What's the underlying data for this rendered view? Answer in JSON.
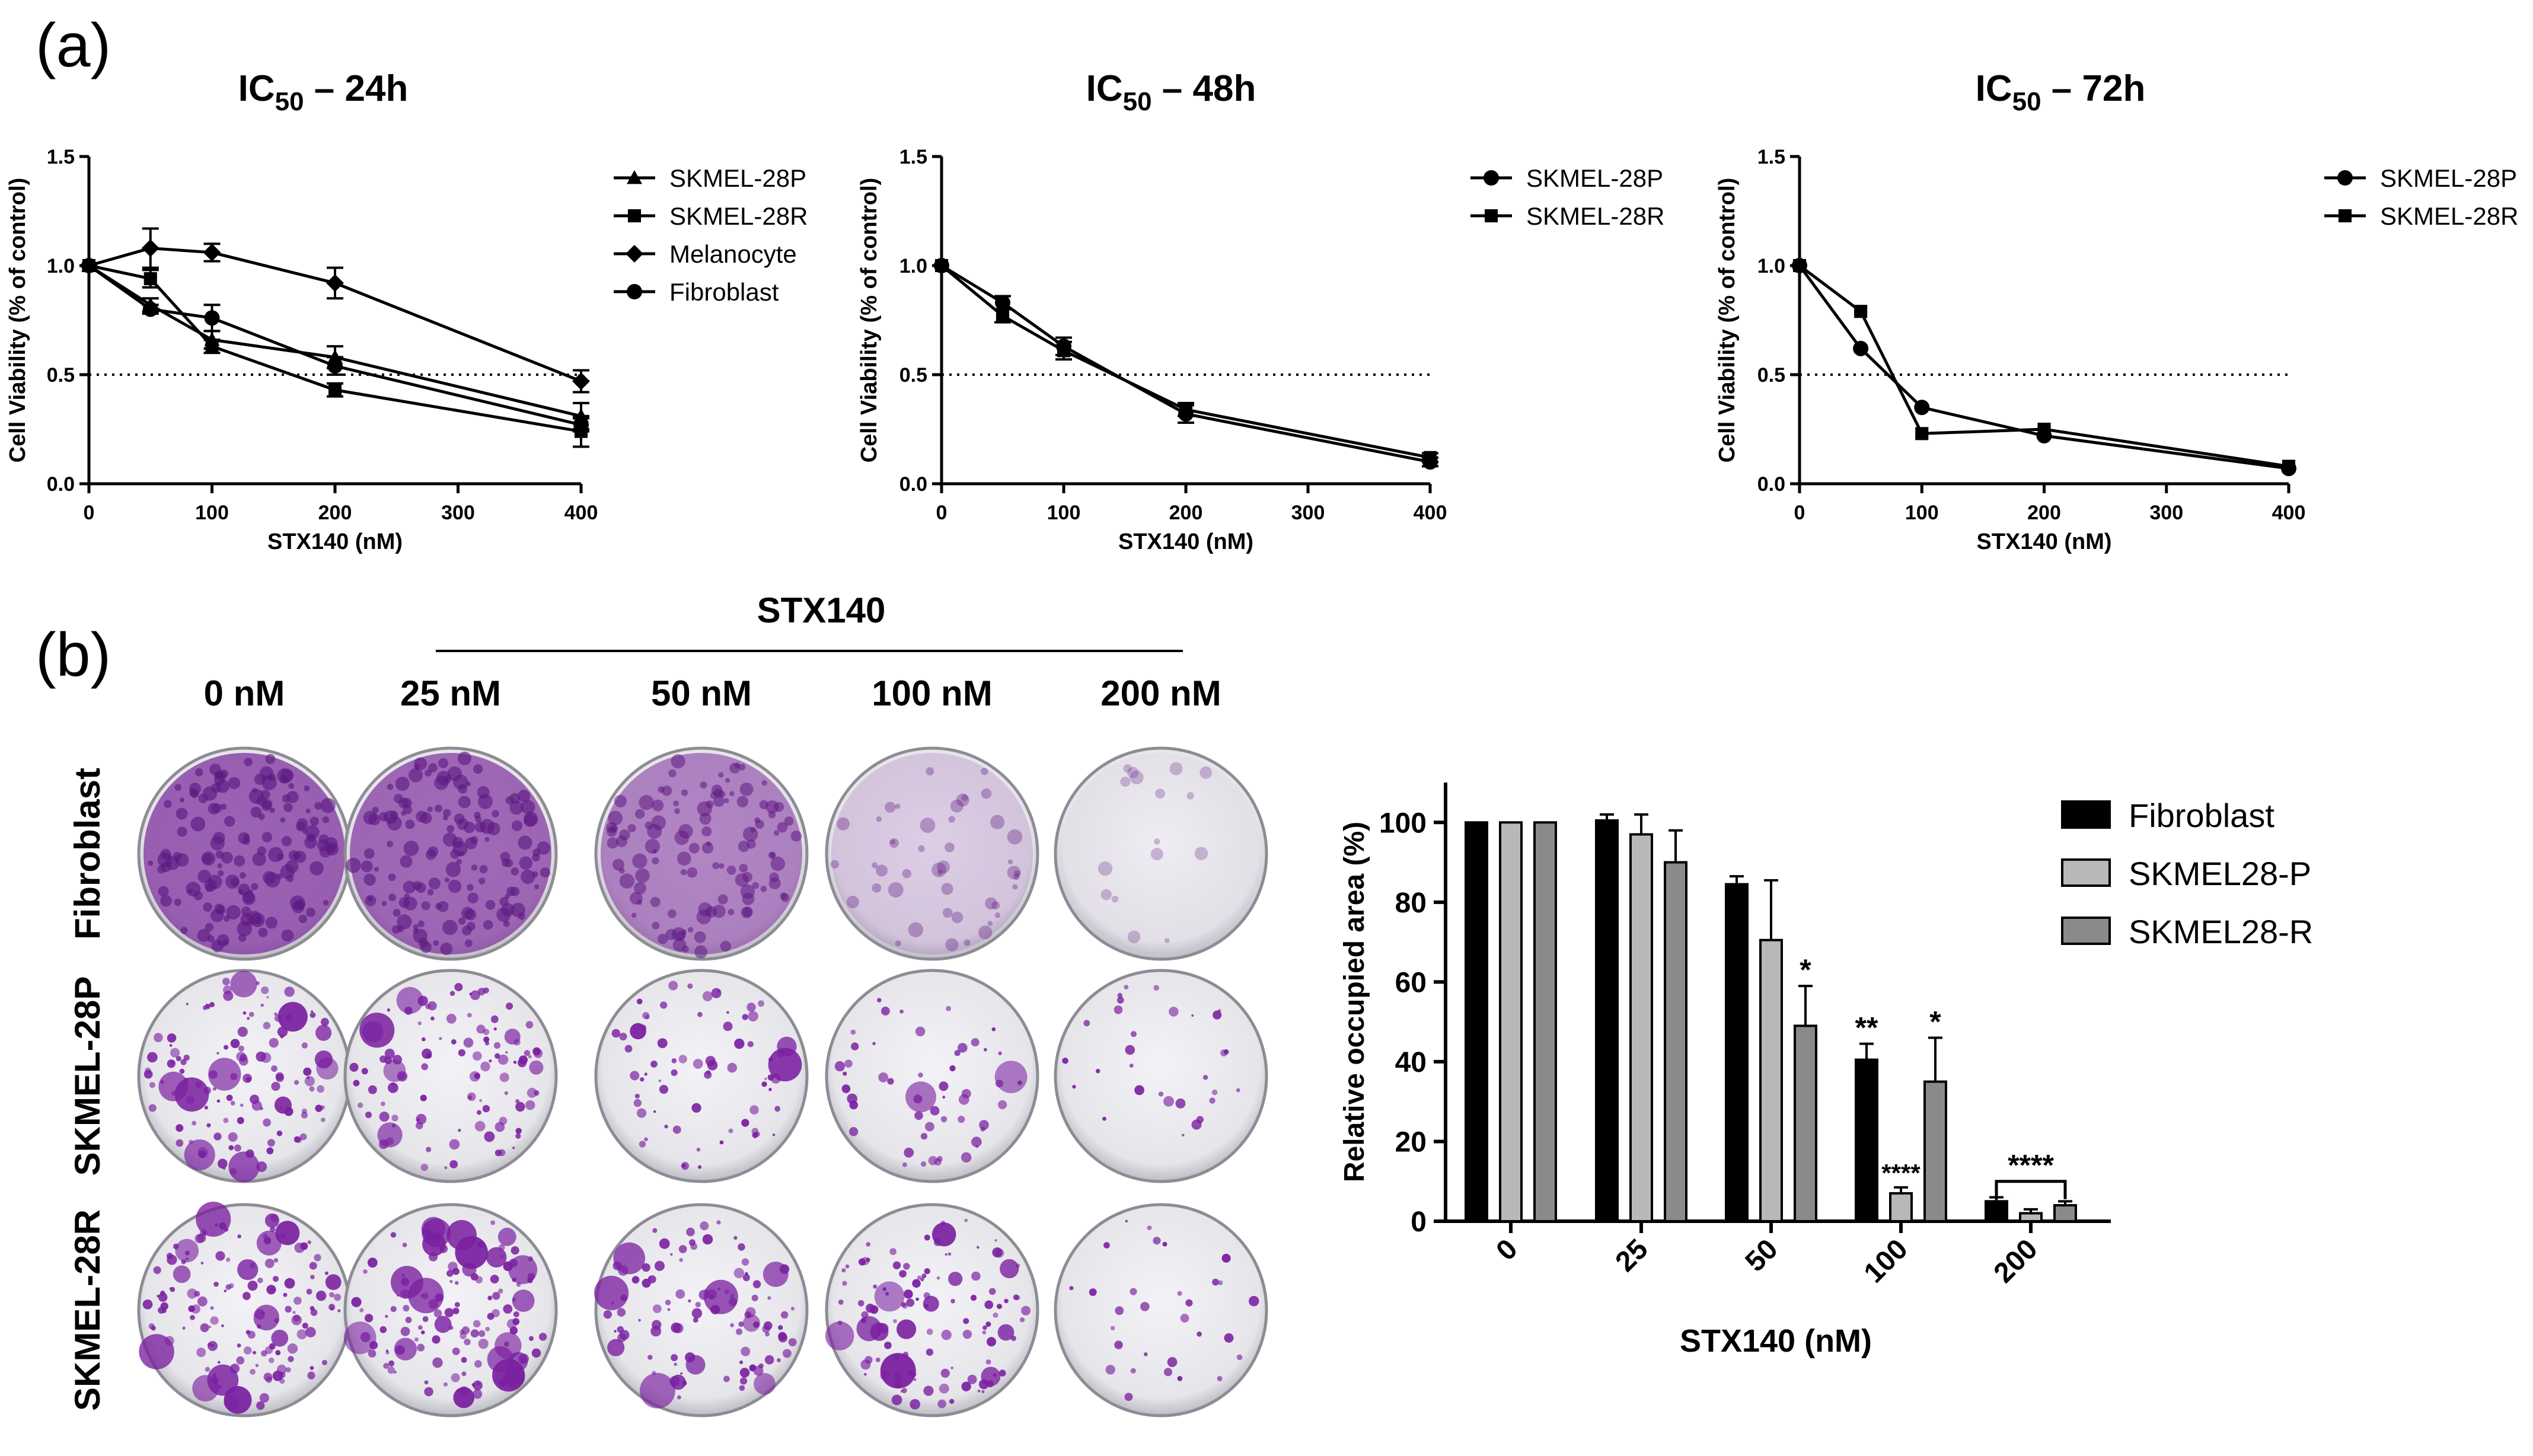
{
  "panel_labels": [
    "(a)",
    "(b)"
  ],
  "colors": {
    "ink": "#000000",
    "fibroblast_bar": "#000000",
    "p_bar": "#b8b8b8",
    "r_bar": "#8a8a8a",
    "plate_bg": "#eeeef2",
    "stain": "#7a2a9a"
  },
  "chart_data": [
    {
      "type": "line",
      "title": "IC50 – 24h",
      "title_main": "IC",
      "title_sub": "50",
      "title_rest": " – 24h",
      "xlabel": "STX140 (nM)",
      "ylabel": "Cell Viability (% of control)",
      "xlim": [
        0,
        400
      ],
      "ylim": [
        0,
        1.5
      ],
      "xticks": [
        0,
        100,
        200,
        300,
        400
      ],
      "xtick_labels": [
        "0",
        "100",
        "200",
        "300",
        "400"
      ],
      "yticks": [
        0.0,
        0.5,
        1.0,
        1.5
      ],
      "ytick_labels": [
        "0.0",
        "0.5",
        "1.0",
        "1.5"
      ],
      "threshold": 0.5,
      "x": [
        0,
        50,
        100,
        200,
        400
      ],
      "series": [
        {
          "name": "SKMEL-28P",
          "marker": "triangle",
          "values": [
            1.0,
            0.82,
            0.66,
            0.58,
            0.31
          ],
          "errors": [
            0.01,
            0.03,
            0.04,
            0.05,
            0.06
          ]
        },
        {
          "name": "SKMEL-28R",
          "marker": "square",
          "values": [
            1.0,
            0.94,
            0.63,
            0.43,
            0.24
          ],
          "errors": [
            0.01,
            0.04,
            0.03,
            0.03,
            0.07
          ]
        },
        {
          "name": "Melanocyte",
          "marker": "diamond",
          "values": [
            1.0,
            1.08,
            1.06,
            0.92,
            0.47
          ],
          "errors": [
            0.01,
            0.09,
            0.04,
            0.07,
            0.05
          ]
        },
        {
          "name": "Fibroblast",
          "marker": "circle",
          "values": [
            1.0,
            0.8,
            0.76,
            0.54,
            0.27
          ],
          "errors": [
            0.01,
            0.02,
            0.06,
            0.04,
            0.03
          ]
        }
      ]
    },
    {
      "type": "line",
      "title": "IC50 – 48h",
      "title_main": "IC",
      "title_sub": "50",
      "title_rest": " – 48h",
      "xlabel": "STX140 (nM)",
      "ylabel": "Cell Viability (% of control)",
      "xlim": [
        0,
        400
      ],
      "ylim": [
        0,
        1.5
      ],
      "xticks": [
        0,
        100,
        200,
        300,
        400
      ],
      "xtick_labels": [
        "0",
        "100",
        "200",
        "300",
        "400"
      ],
      "yticks": [
        0.0,
        0.5,
        1.0,
        1.5
      ],
      "ytick_labels": [
        "0.0",
        "0.5",
        "1.0",
        "1.5"
      ],
      "threshold": 0.5,
      "x": [
        0,
        50,
        100,
        200,
        400
      ],
      "series": [
        {
          "name": "SKMEL-28P",
          "marker": "circle",
          "values": [
            1.0,
            0.83,
            0.63,
            0.32,
            0.1
          ],
          "errors": [
            0.01,
            0.03,
            0.04,
            0.04,
            0.02
          ]
        },
        {
          "name": "SKMEL-28R",
          "marker": "square",
          "values": [
            1.0,
            0.77,
            0.61,
            0.34,
            0.12
          ],
          "errors": [
            0.01,
            0.03,
            0.04,
            0.03,
            0.02
          ]
        }
      ]
    },
    {
      "type": "line",
      "title": "IC50 – 72h",
      "title_main": "IC",
      "title_sub": "50",
      "title_rest": " – 72h",
      "xlabel": "STX140 (nM)",
      "ylabel": "Cell Viability (% of control)",
      "xlim": [
        0,
        400
      ],
      "ylim": [
        0,
        1.5
      ],
      "xticks": [
        0,
        100,
        200,
        300,
        400
      ],
      "xtick_labels": [
        "0",
        "100",
        "200",
        "300",
        "400"
      ],
      "yticks": [
        0.0,
        0.5,
        1.0,
        1.5
      ],
      "ytick_labels": [
        "0.0",
        "0.5",
        "1.0",
        "1.5"
      ],
      "threshold": 0.5,
      "x": [
        0,
        50,
        100,
        200,
        400
      ],
      "series": [
        {
          "name": "SKMEL-28P",
          "marker": "circle",
          "values": [
            1.0,
            0.62,
            0.35,
            0.22,
            0.07
          ],
          "errors": [
            0.01,
            0.01,
            0.01,
            0.01,
            0.01
          ]
        },
        {
          "name": "SKMEL-28R",
          "marker": "square",
          "values": [
            1.0,
            0.79,
            0.23,
            0.25,
            0.08
          ],
          "errors": [
            0.01,
            0.01,
            0.01,
            0.01,
            0.01
          ]
        }
      ]
    },
    {
      "type": "bar",
      "xlabel": "STX140 (nM)",
      "ylabel": "Relative occupied area (%)",
      "ylim": [
        0,
        110
      ],
      "yticks": [
        0,
        20,
        40,
        60,
        80,
        100
      ],
      "ytick_labels": [
        "0",
        "20",
        "40",
        "60",
        "80",
        "100"
      ],
      "categories": [
        "0",
        "25",
        "50",
        "100",
        "200"
      ],
      "series": [
        {
          "name": "Fibroblast",
          "values": [
            100,
            100.5,
            84.5,
            40.5,
            5
          ],
          "errors": [
            0,
            1.5,
            2,
            4,
            1
          ]
        },
        {
          "name": "SKMEL28-P",
          "values": [
            100,
            97,
            70.5,
            7,
            2
          ],
          "errors": [
            0,
            5,
            15,
            1.5,
            1
          ]
        },
        {
          "name": "SKMEL28-R",
          "values": [
            100,
            90,
            49,
            35,
            4
          ],
          "errors": [
            0,
            8,
            10,
            11,
            1
          ]
        }
      ],
      "significance": [
        {
          "category": "50",
          "series": "SKMEL28-R",
          "label": "*"
        },
        {
          "category": "100",
          "series": "Fibroblast",
          "label": "**"
        },
        {
          "category": "100",
          "series": "SKMEL28-P",
          "label": "****"
        },
        {
          "category": "100",
          "series": "SKMEL28-R",
          "label": "*"
        },
        {
          "category": "200",
          "series": "bracket",
          "label": "****"
        }
      ]
    }
  ],
  "plates": {
    "treatment_label": "STX140",
    "concentrations": [
      "0 nM",
      "25 nM",
      "50 nM",
      "100 nM",
      "200 nM"
    ],
    "rows": [
      "Fibroblast",
      "SKMEL-28P",
      "SKMEL-28R"
    ]
  }
}
